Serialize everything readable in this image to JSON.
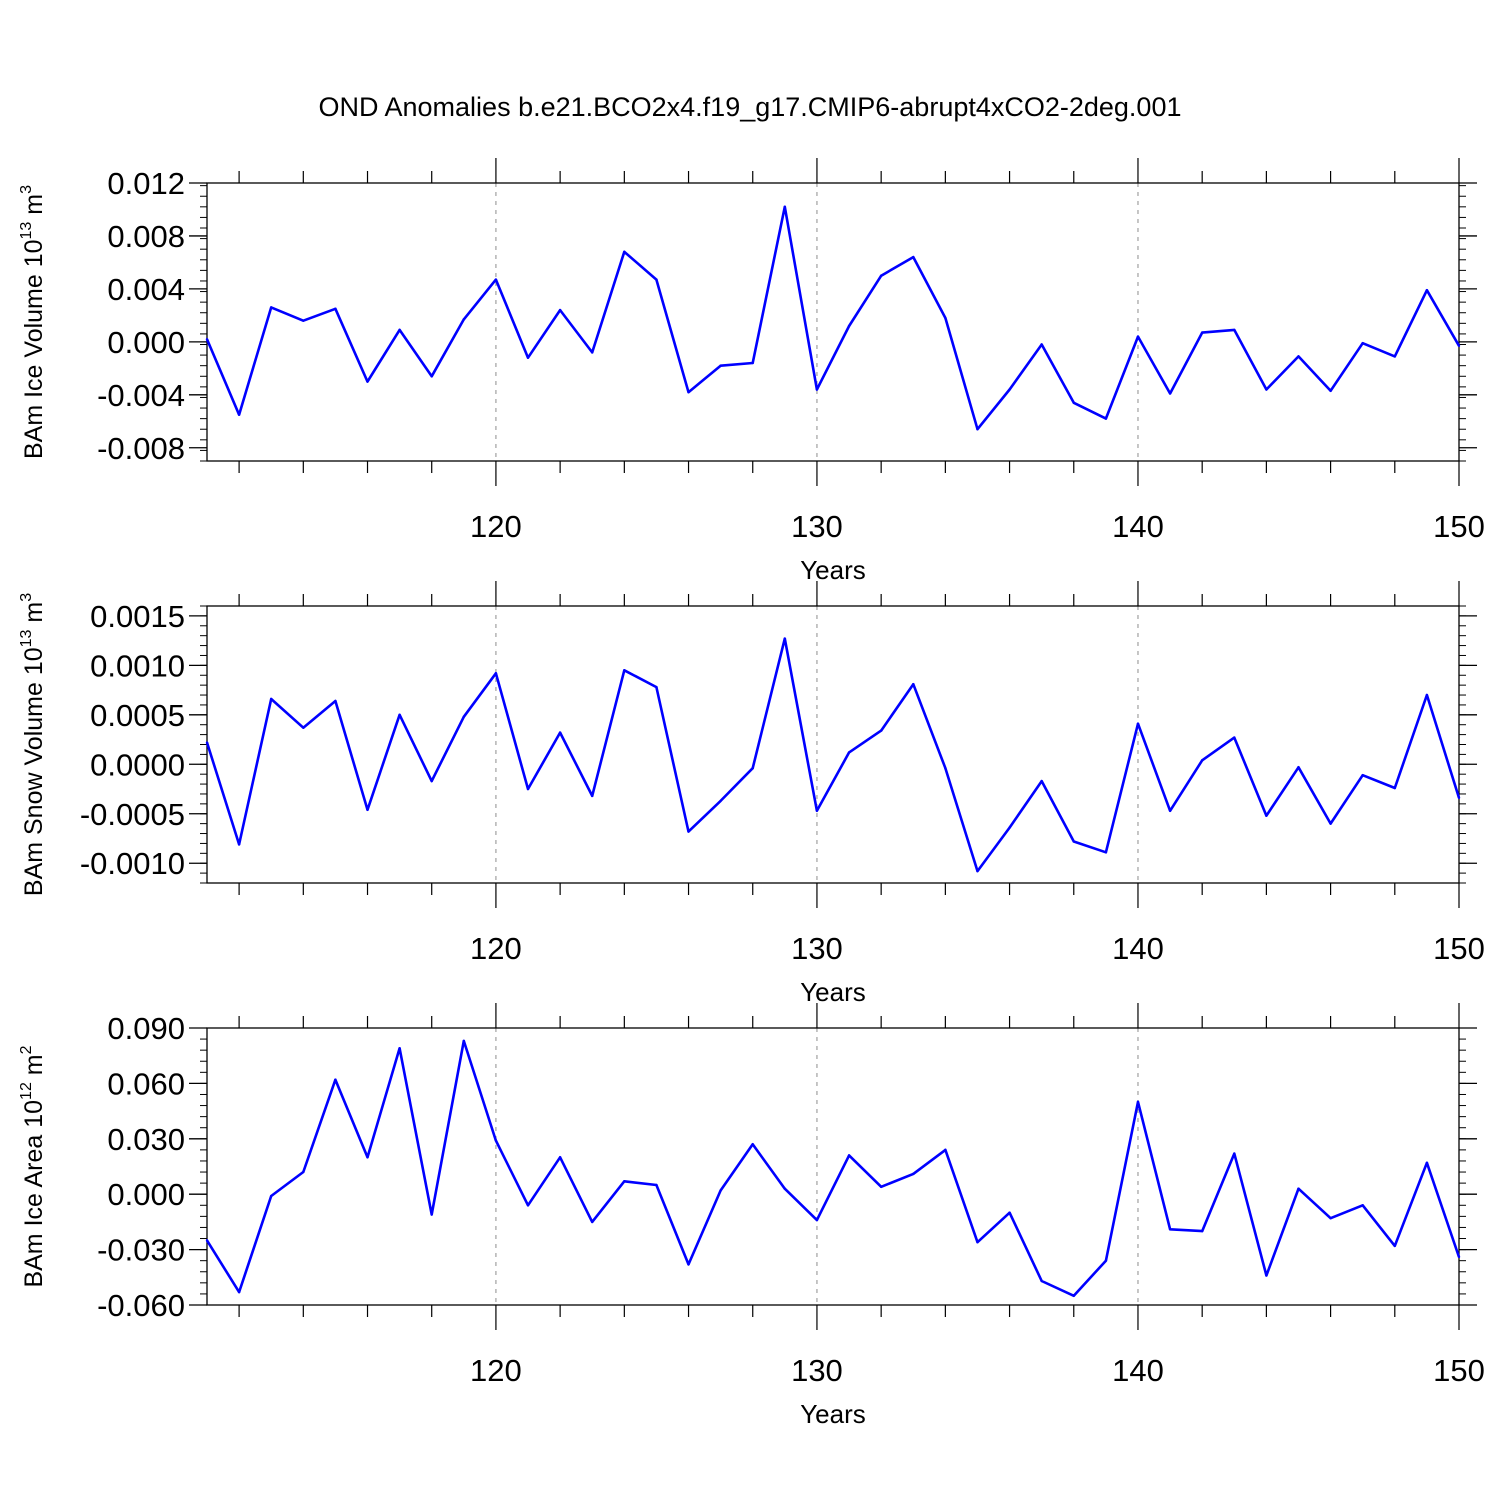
{
  "title": "OND Anomalies b.e21.BCO2x4.f19_g17.CMIP6-abrupt4xCO2-2deg.001",
  "colors": {
    "line": "#0000ff",
    "axis": "#000000",
    "grid": "#a0a0a0"
  },
  "chart_data": [
    {
      "type": "line",
      "ylabel": "BAm Ice Volume 10",
      "ylabel_exp": "13",
      "ylabel_unit": "m",
      "ylabel_unit_exp": "3",
      "xlabel": "Years",
      "xlim": [
        111,
        150
      ],
      "ylim": [
        -0.009,
        0.012
      ],
      "grid": "vertical dashed at major x ticks",
      "x_ticks": [
        120,
        130,
        140,
        150
      ],
      "x_tick_labels": [
        "120",
        "130",
        "140",
        "150"
      ],
      "y_ticks": [
        -0.008,
        -0.004,
        0.0,
        0.004,
        0.008,
        0.012
      ],
      "y_tick_labels": [
        "-0.008",
        "-0.004",
        "0.000",
        "0.004",
        "0.008",
        "0.012"
      ],
      "x": [
        111,
        112,
        113,
        114,
        115,
        116,
        117,
        118,
        119,
        120,
        121,
        122,
        123,
        124,
        125,
        126,
        127,
        128,
        129,
        130,
        131,
        132,
        133,
        134,
        135,
        136,
        137,
        138,
        139,
        140,
        141,
        142,
        143,
        144,
        145,
        146,
        147,
        148,
        149,
        150
      ],
      "values": [
        0.0002,
        -0.0055,
        0.0026,
        0.0016,
        0.0025,
        -0.003,
        0.0009,
        -0.0026,
        0.0017,
        0.0047,
        -0.0012,
        0.0024,
        -0.0008,
        0.0068,
        0.0047,
        -0.0038,
        -0.0018,
        -0.0016,
        0.0102,
        -0.0036,
        0.0012,
        0.005,
        0.0064,
        0.0018,
        -0.0066,
        -0.0036,
        -0.0002,
        -0.0046,
        -0.0058,
        0.0004,
        -0.0039,
        0.0007,
        0.0009,
        -0.0036,
        -0.0011,
        -0.0037,
        -0.0001,
        -0.0011,
        0.0039,
        -0.0003
      ]
    },
    {
      "type": "line",
      "ylabel": "BAm Snow Volume 10",
      "ylabel_exp": "13",
      "ylabel_unit": "m",
      "ylabel_unit_exp": "3",
      "xlabel": "Years",
      "xlim": [
        111,
        150
      ],
      "ylim": [
        -0.0012,
        0.0016
      ],
      "grid": "vertical dashed at major x ticks",
      "x_ticks": [
        120,
        130,
        140,
        150
      ],
      "x_tick_labels": [
        "120",
        "130",
        "140",
        "150"
      ],
      "y_ticks": [
        -0.001,
        -0.0005,
        0.0,
        0.0005,
        0.001,
        0.0015
      ],
      "y_tick_labels": [
        "-0.0010",
        "-0.0005",
        "0.0000",
        "0.0005",
        "0.0010",
        "0.0015"
      ],
      "x": [
        111,
        112,
        113,
        114,
        115,
        116,
        117,
        118,
        119,
        120,
        121,
        122,
        123,
        124,
        125,
        126,
        127,
        128,
        129,
        130,
        131,
        132,
        133,
        134,
        135,
        136,
        137,
        138,
        139,
        140,
        141,
        142,
        143,
        144,
        145,
        146,
        147,
        148,
        149,
        150
      ],
      "values": [
        0.00022,
        -0.00081,
        0.00066,
        0.00037,
        0.00064,
        -0.00046,
        0.0005,
        -0.00017,
        0.00048,
        0.00092,
        -0.00025,
        0.00032,
        -0.00032,
        0.00095,
        0.00078,
        -0.00068,
        -0.00037,
        -4e-05,
        0.00127,
        -0.00047,
        0.00012,
        0.00034,
        0.00081,
        -4e-05,
        -0.00108,
        -0.00064,
        -0.00017,
        -0.00078,
        -0.00089,
        0.00041,
        -0.00047,
        4e-05,
        0.00027,
        -0.00052,
        -3e-05,
        -0.0006,
        -0.00011,
        -0.00024,
        0.0007,
        -0.00034
      ]
    },
    {
      "type": "line",
      "ylabel": "BAm Ice Area 10",
      "ylabel_exp": "12",
      "ylabel_unit": "m",
      "ylabel_unit_exp": "2",
      "xlabel": "Years",
      "xlim": [
        111,
        150
      ],
      "ylim": [
        -0.06,
        0.09
      ],
      "grid": "vertical dashed at major x ticks",
      "x_ticks": [
        120,
        130,
        140,
        150
      ],
      "x_tick_labels": [
        "120",
        "130",
        "140",
        "150"
      ],
      "y_ticks": [
        -0.06,
        -0.03,
        0.0,
        0.03,
        0.06,
        0.09
      ],
      "y_tick_labels": [
        "-0.060",
        "-0.030",
        "0.000",
        "0.030",
        "0.060",
        "0.090"
      ],
      "x": [
        111,
        112,
        113,
        114,
        115,
        116,
        117,
        118,
        119,
        120,
        121,
        122,
        123,
        124,
        125,
        126,
        127,
        128,
        129,
        130,
        131,
        132,
        133,
        134,
        135,
        136,
        137,
        138,
        139,
        140,
        141,
        142,
        143,
        144,
        145,
        146,
        147,
        148,
        149,
        150
      ],
      "values": [
        -0.025,
        -0.053,
        -0.001,
        0.012,
        0.062,
        0.02,
        0.079,
        -0.011,
        0.083,
        0.029,
        -0.006,
        0.02,
        -0.015,
        0.007,
        0.005,
        -0.038,
        0.002,
        0.027,
        0.003,
        -0.014,
        0.021,
        0.004,
        0.011,
        0.024,
        -0.026,
        -0.01,
        -0.047,
        -0.055,
        -0.036,
        0.05,
        -0.019,
        -0.02,
        0.022,
        -0.044,
        0.003,
        -0.013,
        -0.006,
        -0.028,
        0.017,
        -0.034
      ]
    }
  ]
}
